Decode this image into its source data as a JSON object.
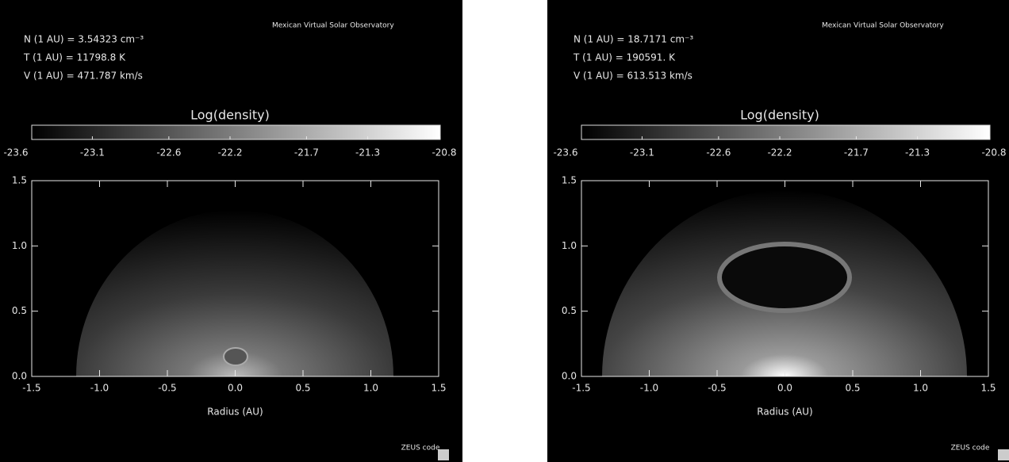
{
  "panels": [
    {
      "observatory": "Mexican Virtual Solar Observatory",
      "params": [
        "N (1 AU) =  3.54323  cm⁻³",
        "T (1 AU) =  11798.8  K",
        "V (1 AU) =  471.787  km/s"
      ],
      "colorbar_label": "Log(density)",
      "colorbar_lim": [
        -23.6,
        -20.8
      ],
      "colorbar_ticks": [
        -23.6,
        -23.1,
        -22.6,
        -22.2,
        -21.7,
        -21.3,
        -20.8
      ],
      "xlim": [
        -1.5,
        1.5
      ],
      "xticks": [
        -1.5,
        {
          "value": -1,
          "label": "-1.0"
        },
        -0.5,
        {
          "value": 0,
          "label": "0.0"
        },
        0.5,
        {
          "value": 1,
          "label": "1.0"
        },
        1.5
      ],
      "ylim": [
        0,
        1.5
      ],
      "yticks": [
        {
          "value": 0,
          "label": "0.0"
        },
        0.5,
        {
          "value": 1,
          "label": "1.0"
        },
        1.5
      ],
      "xlabel": "Radius (AU)",
      "footer": "ZEUS code"
    },
    {
      "observatory": "Mexican Virtual Solar Observatory",
      "params": [
        "N (1 AU) =  18.7171  cm⁻³",
        "T (1 AU) =  190591.  K",
        "V (1 AU) =  613.513  km/s"
      ],
      "colorbar_label": "Log(density)",
      "colorbar_lim": [
        -23.6,
        -20.8
      ],
      "colorbar_ticks": [
        -23.6,
        -23.1,
        -22.6,
        -22.2,
        -21.7,
        -21.3,
        -20.8
      ],
      "xlim": [
        -1.5,
        1.5
      ],
      "xticks": [
        -1.5,
        {
          "value": -1,
          "label": "-1.0"
        },
        -0.5,
        {
          "value": 0,
          "label": "0.0"
        },
        0.5,
        {
          "value": 1,
          "label": "1.0"
        },
        1.5
      ],
      "ylim": [
        0,
        1.5
      ],
      "yticks": [
        {
          "value": 0,
          "label": "0.0"
        },
        0.5,
        {
          "value": 1,
          "label": "1.0"
        },
        1.5
      ],
      "xlabel": "Radius (AU)",
      "footer": "ZEUS code"
    }
  ]
}
